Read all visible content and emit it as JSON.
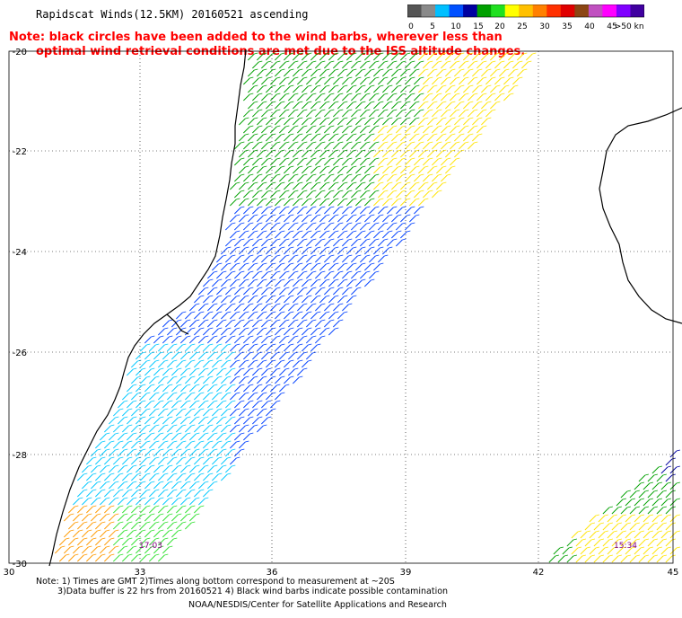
{
  "header": {
    "title": "Rapidscat Winds(12.5KM) 20160521 ascending",
    "note_line1": "Note: black circles have been added to the wind barbs, wherever less than",
    "note_line2": "optimal wind retrieval conditions are met due to the ISS altitude changes."
  },
  "legend": {
    "labels": [
      "0",
      "5",
      "10",
      "15",
      "20",
      "25",
      "30",
      "35",
      "40",
      "45",
      ">50 knots"
    ],
    "colors": [
      "#555555",
      "#8a8a8a",
      "#00bfff",
      "#0050ff",
      "#0000a0",
      "#00a000",
      "#20e020",
      "#ffff00",
      "#ffc000",
      "#ff8000",
      "#ff3000",
      "#e00000",
      "#8b4513",
      "#c050c0",
      "#ff00ff",
      "#8000ff",
      "#4000a0"
    ]
  },
  "map": {
    "lat_labels": [
      "-20",
      "-22",
      "-24",
      "-26",
      "-28",
      "-30"
    ],
    "lon_labels": [
      "30",
      "33",
      "36",
      "39",
      "42",
      "45"
    ],
    "time_labels": [
      "17:03",
      "15:34"
    ],
    "colors": {
      "coast": "#000000",
      "grid": "#000000",
      "time_label": "#800080"
    }
  },
  "footer": {
    "line1": "Note: 1) Times are GMT 2)Times along bottom correspond to measurement at ~20S",
    "line2": "3)Data buffer is 22 hrs from 20160521 4) Black wind barbs indicate possible contamination",
    "credit": "NOAA/NESDIS/Center for Satellite Applications and Research"
  }
}
